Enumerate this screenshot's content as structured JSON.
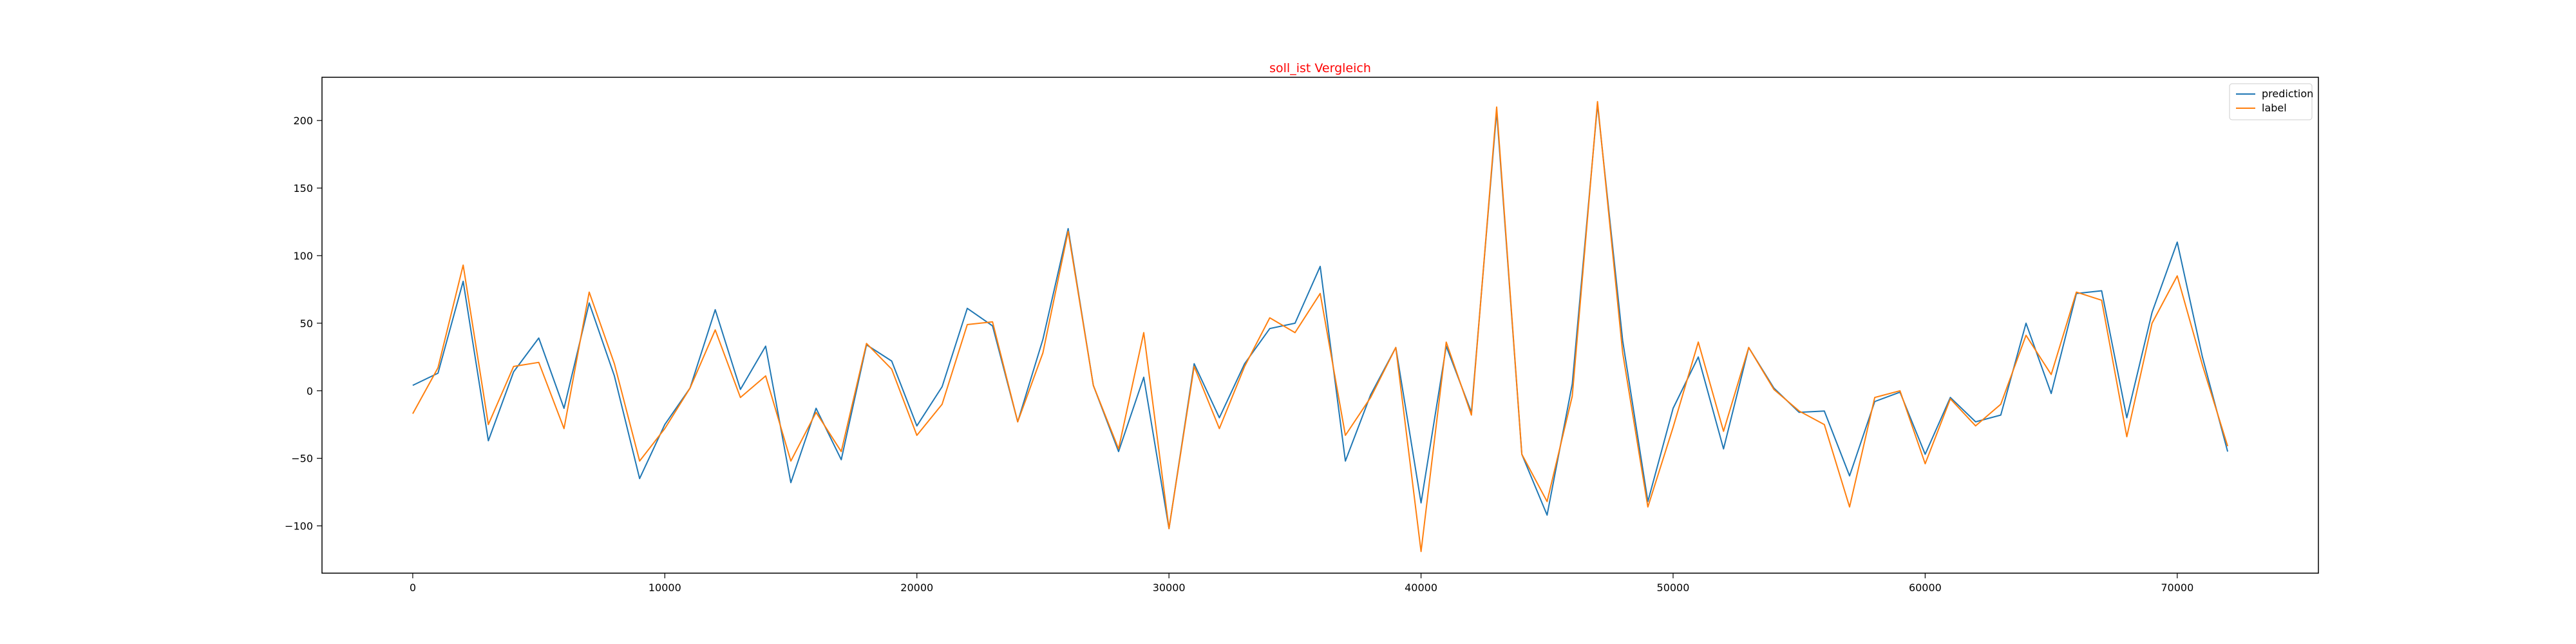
{
  "chart_data": {
    "type": "line",
    "title": "soll_ist Vergleich",
    "title_color": "#ff0000",
    "xlabel": "",
    "ylabel": "",
    "xlim": [
      -3600,
      75600
    ],
    "ylim": [
      -135,
      232
    ],
    "x_ticks": [
      0,
      10000,
      20000,
      30000,
      40000,
      50000,
      60000,
      70000
    ],
    "y_ticks": [
      -100,
      -50,
      0,
      50,
      100,
      150,
      200
    ],
    "grid": false,
    "legend_position": "top-right",
    "x": [
      0,
      1000,
      2000,
      3000,
      4000,
      5000,
      6000,
      7000,
      8000,
      9000,
      10000,
      11000,
      12000,
      13000,
      14000,
      15000,
      16000,
      17000,
      18000,
      19000,
      20000,
      21000,
      22000,
      23000,
      24000,
      25000,
      26000,
      27000,
      28000,
      29000,
      30000,
      31000,
      32000,
      33000,
      34000,
      35000,
      36000,
      37000,
      38000,
      39000,
      40000,
      41000,
      42000,
      43000,
      44000,
      45000,
      46000,
      47000,
      48000,
      49000,
      50000,
      51000,
      52000,
      53000,
      54000,
      55000,
      56000,
      57000,
      58000,
      59000,
      60000,
      61000,
      62000,
      63000,
      64000,
      65000,
      66000,
      67000,
      68000,
      69000,
      70000,
      71000,
      72000
    ],
    "series": [
      {
        "name": "prediction",
        "color": "#1f77b4",
        "values": [
          4,
          13,
          81,
          -37,
          14,
          39,
          -13,
          65,
          11,
          -65,
          -25,
          2,
          60,
          1,
          33,
          -68,
          -13,
          -51,
          34,
          22,
          -26,
          3,
          61,
          48,
          -23,
          38,
          120,
          4,
          -45,
          10,
          -102,
          20,
          -20,
          20,
          46,
          50,
          92,
          -52,
          -3,
          32,
          -83,
          33,
          -16,
          207,
          -47,
          -92,
          5,
          212,
          37,
          -82,
          -13,
          25,
          -43,
          32,
          2,
          -16,
          -15,
          -63,
          -8,
          -1,
          -47,
          -5,
          -23,
          -18,
          50,
          -2,
          72,
          74,
          -20,
          58,
          110,
          25,
          -45
        ]
      },
      {
        "name": "label",
        "color": "#ff7f0e",
        "values": [
          -17,
          17,
          93,
          -25,
          18,
          21,
          -28,
          73,
          20,
          -52,
          -28,
          2,
          45,
          -5,
          11,
          -52,
          -16,
          -45,
          35,
          16,
          -33,
          -10,
          49,
          51,
          -23,
          28,
          118,
          4,
          -43,
          43,
          -102,
          18,
          -28,
          18,
          54,
          43,
          72,
          -33,
          -5,
          32,
          -119,
          36,
          -18,
          210,
          -47,
          -82,
          -4,
          214,
          28,
          -86,
          -27,
          36,
          -30,
          32,
          1,
          -15,
          -25,
          -86,
          -5,
          0,
          -54,
          -6,
          -26,
          -10,
          41,
          12,
          73,
          67,
          -34,
          50,
          85,
          19,
          -41
        ]
      }
    ]
  }
}
